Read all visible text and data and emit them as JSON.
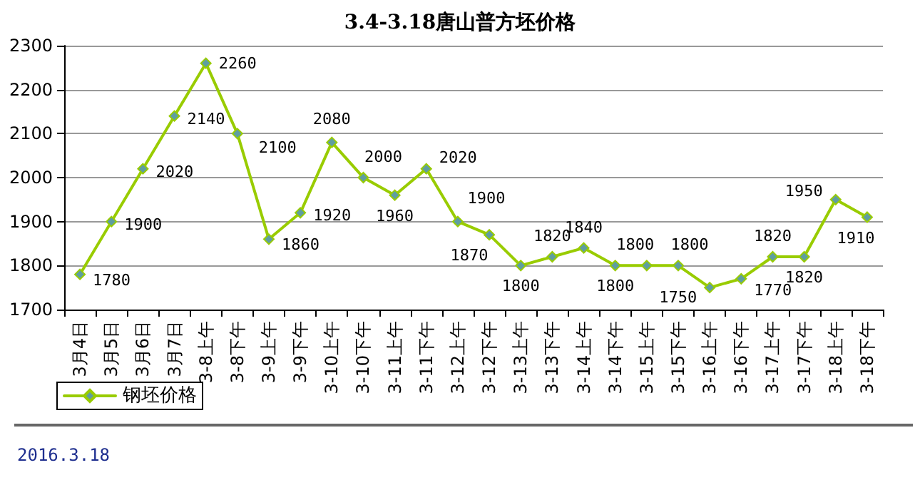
{
  "chart_data": {
    "type": "line",
    "title": "3.4-3.18唐山普方坯价格",
    "categories": [
      "3月4日",
      "3月5日",
      "3月6日",
      "3月7日",
      "3-8上午",
      "3-8下午",
      "3-9上午",
      "3-9下午",
      "3-10上午",
      "3-10下午",
      "3-11上午",
      "3-11下午",
      "3-12上午",
      "3-12下午",
      "3-13上午",
      "3-13下午",
      "3-14上午",
      "3-14下午",
      "3-15上午",
      "3-15下午",
      "3-16上午",
      "3-16下午",
      "3-17上午",
      "3-17下午",
      "3-18上午",
      "3-18下午"
    ],
    "series": [
      {
        "name": "钢坯价格",
        "color": "#99cc00",
        "values": [
          1780,
          1900,
          2020,
          2140,
          2260,
          2100,
          1860,
          1920,
          2080,
          2000,
          1960,
          2020,
          1900,
          1870,
          1800,
          1820,
          1840,
          1800,
          1800,
          1800,
          1750,
          1770,
          1820,
          1820,
          1950,
          1910
        ]
      }
    ],
    "ylim": [
      1700,
      2300
    ],
    "yticks": [
      1700,
      1800,
      1900,
      2000,
      2100,
      2200,
      2300
    ],
    "grid": "y",
    "legend": "bottom left",
    "marker": "diamond",
    "line_style": "solid",
    "data_labels": true,
    "annotations": [
      "2016.3.18"
    ]
  }
}
